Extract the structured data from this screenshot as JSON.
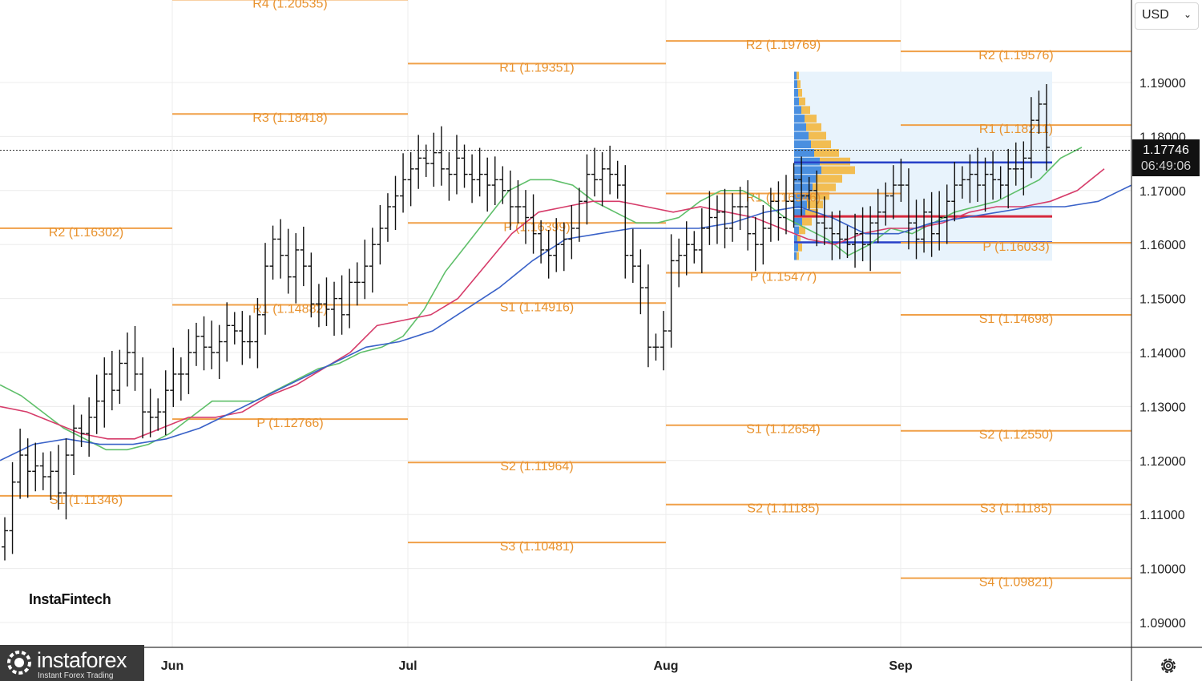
{
  "currency": {
    "label": "USD"
  },
  "price_tag": {
    "price": "1.17746",
    "timer": "06:49:06"
  },
  "watermarks": {
    "top_text": "InstaFintech",
    "brand": "instaforex",
    "brand_sub": "Instant Forex Trading"
  },
  "chart_data": {
    "type": "ohlc",
    "instrument_hint": "EUR/USD daily",
    "ylim": [
      1.085,
      1.212
    ],
    "yticks": [
      "1.19000",
      "1.18000",
      "1.17000",
      "1.16000",
      "1.15000",
      "1.14000",
      "1.13000",
      "1.12000",
      "1.11000",
      "1.10000",
      "1.09000"
    ],
    "months": [
      "Jun",
      "Jul",
      "Aug",
      "Sep"
    ],
    "current_price": 1.17746,
    "pivot_levels": [
      {
        "period": "May",
        "label": "R4 (1.20535)",
        "value": 1.20535
      },
      {
        "period": "May",
        "label": "R3 (1.18418)",
        "value": 1.18418
      },
      {
        "period": "May",
        "label": "R2 (1.16302)",
        "value": 1.16302
      },
      {
        "period": "May",
        "label": "R1 (1.14882)",
        "value": 1.14882
      },
      {
        "period": "May",
        "label": "P (1.12766)",
        "value": 1.12766
      },
      {
        "period": "May",
        "label": "S1 (1.11346)",
        "value": 1.11346
      },
      {
        "period": "Jun",
        "label": "R1 (1.19351)",
        "value": 1.19351
      },
      {
        "period": "Jun",
        "label": "P (1.16399)",
        "value": 1.16399
      },
      {
        "period": "Jun",
        "label": "S1 (1.14916)",
        "value": 1.14916
      },
      {
        "period": "Jun",
        "label": "S2 (1.11964)",
        "value": 1.11964
      },
      {
        "period": "Jun",
        "label": "S3 (1.10481)",
        "value": 1.10481
      },
      {
        "period": "Jul",
        "label": "R2 (1.19769)",
        "value": 1.19769
      },
      {
        "period": "Jul",
        "label": "R1 (1.16946)",
        "value": 1.16946
      },
      {
        "period": "Jul",
        "label": "P (1.15477)",
        "value": 1.15477
      },
      {
        "period": "Jul",
        "label": "S1 (1.12654)",
        "value": 1.12654
      },
      {
        "period": "Jul",
        "label": "S2 (1.11185)",
        "value": 1.11185
      },
      {
        "period": "Aug",
        "label": "R2 (1.19576)",
        "value": 1.19576
      },
      {
        "period": "Aug",
        "label": "R1 (1.18211)",
        "value": 1.18211
      },
      {
        "period": "Aug",
        "label": "P (1.16033)",
        "value": 1.16033
      },
      {
        "period": "Aug",
        "label": "S1 (1.14698)",
        "value": 1.14698
      },
      {
        "period": "Aug",
        "label": "S2 (1.12550)",
        "value": 1.1255
      },
      {
        "period": "Aug",
        "label": "S3 (1.11185)",
        "value": 1.11185
      },
      {
        "period": "Aug",
        "label": "S4 (1.09821)",
        "value": 1.09821
      }
    ],
    "ohlc_closes": [
      1.107,
      1.116,
      1.121,
      1.118,
      1.119,
      1.117,
      1.118,
      1.114,
      1.121,
      1.126,
      1.125,
      1.128,
      1.131,
      1.136,
      1.133,
      1.138,
      1.14,
      1.136,
      1.129,
      1.128,
      1.129,
      1.133,
      1.136,
      1.136,
      1.14,
      1.143,
      1.141,
      1.14,
      1.142,
      1.145,
      1.144,
      1.142,
      1.142,
      1.147,
      1.156,
      1.161,
      1.158,
      1.154,
      1.159,
      1.156,
      1.149,
      1.149,
      1.148,
      1.15,
      1.147,
      1.153,
      1.153,
      1.156,
      1.16,
      1.163,
      1.167,
      1.169,
      1.172,
      1.174,
      1.176,
      1.175,
      1.177,
      1.174,
      1.173,
      1.176,
      1.173,
      1.172,
      1.173,
      1.171,
      1.172,
      1.17,
      1.167,
      1.167,
      1.165,
      1.162,
      1.159,
      1.158,
      1.16,
      1.161,
      1.163,
      1.168,
      1.173,
      1.172,
      1.174,
      1.173,
      1.171,
      1.158,
      1.156,
      1.152,
      1.141,
      1.141,
      1.144,
      1.157,
      1.158,
      1.16,
      1.159,
      1.163,
      1.165,
      1.166,
      1.163,
      1.167,
      1.167,
      1.162,
      1.16,
      1.163,
      1.168,
      1.165,
      1.168,
      1.172,
      1.169,
      1.17,
      1.164,
      1.163,
      1.162,
      1.161,
      1.16,
      1.162,
      1.16,
      1.164,
      1.166,
      1.169,
      1.171,
      1.171,
      1.164,
      1.161,
      1.166,
      1.162,
      1.165,
      1.168,
      1.171,
      1.172,
      1.173,
      1.171,
      1.173,
      1.172,
      1.171,
      1.174,
      1.174,
      1.176,
      1.183,
      1.186,
      1.178
    ],
    "ma_green": [
      1.134,
      1.132,
      1.129,
      1.126,
      1.124,
      1.122,
      1.122,
      1.123,
      1.125,
      1.128,
      1.131,
      1.131,
      1.131,
      1.133,
      1.135,
      1.137,
      1.138,
      1.14,
      1.141,
      1.143,
      1.148,
      1.155,
      1.16,
      1.165,
      1.17,
      1.172,
      1.172,
      1.171,
      1.168,
      1.166,
      1.164,
      1.164,
      1.165,
      1.168,
      1.17,
      1.17,
      1.168,
      1.165,
      1.163,
      1.161,
      1.158,
      1.16,
      1.163,
      1.162,
      1.164,
      1.166,
      1.167,
      1.168,
      1.17,
      1.172,
      1.176,
      1.178
    ],
    "ma_red": [
      1.13,
      1.129,
      1.127,
      1.125,
      1.124,
      1.124,
      1.126,
      1.128,
      1.128,
      1.129,
      1.132,
      1.134,
      1.137,
      1.14,
      1.145,
      1.146,
      1.147,
      1.15,
      1.156,
      1.162,
      1.166,
      1.167,
      1.168,
      1.168,
      1.167,
      1.166,
      1.167,
      1.166,
      1.165,
      1.163,
      1.161,
      1.16,
      1.162,
      1.163,
      1.163,
      1.164,
      1.166,
      1.167,
      1.167,
      1.168,
      1.17,
      1.174
    ],
    "ma_blue": [
      1.12,
      1.123,
      1.124,
      1.123,
      1.123,
      1.124,
      1.126,
      1.129,
      1.132,
      1.135,
      1.138,
      1.141,
      1.142,
      1.144,
      1.148,
      1.152,
      1.157,
      1.161,
      1.162,
      1.163,
      1.163,
      1.163,
      1.164,
      1.166,
      1.167,
      1.165,
      1.162,
      1.162,
      1.164,
      1.165,
      1.166,
      1.167,
      1.167,
      1.168,
      1.171
    ],
    "volume_profile": {
      "range": [
        1.157,
        1.192
      ],
      "poc": 1.1652
    }
  }
}
